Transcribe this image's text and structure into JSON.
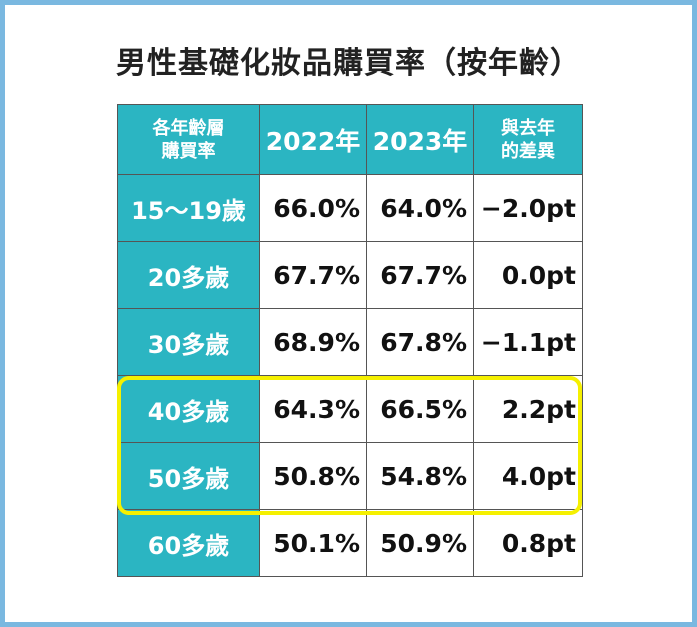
{
  "title": "男性基礎化妝品購買率（按年齡）",
  "table": {
    "headers": {
      "age_line1": "各年齡層",
      "age_line2": "購買率",
      "y2022": "2022年",
      "y2023": "2023年",
      "diff_line1": "與去年",
      "diff_line2": "的差異"
    },
    "rows": [
      {
        "age": "15～19歲",
        "y2022": "66.0%",
        "y2023": "64.0%",
        "diff": "−2.0pt"
      },
      {
        "age": "20多歲",
        "y2022": "67.7%",
        "y2023": "67.7%",
        "diff": "0.0pt"
      },
      {
        "age": "30多歲",
        "y2022": "68.9%",
        "y2023": "67.8%",
        "diff": "−1.1pt"
      },
      {
        "age": "40多歲",
        "y2022": "64.3%",
        "y2023": "66.5%",
        "diff": "2.2pt"
      },
      {
        "age": "50多歲",
        "y2022": "50.8%",
        "y2023": "54.8%",
        "diff": "4.0pt"
      },
      {
        "age": "60多歲",
        "y2022": "50.1%",
        "y2023": "50.9%",
        "diff": "0.8pt"
      }
    ]
  },
  "colors": {
    "header_bg": "#2bb5c2",
    "frame": "#7ab8e0",
    "highlight": "#f5f000"
  }
}
